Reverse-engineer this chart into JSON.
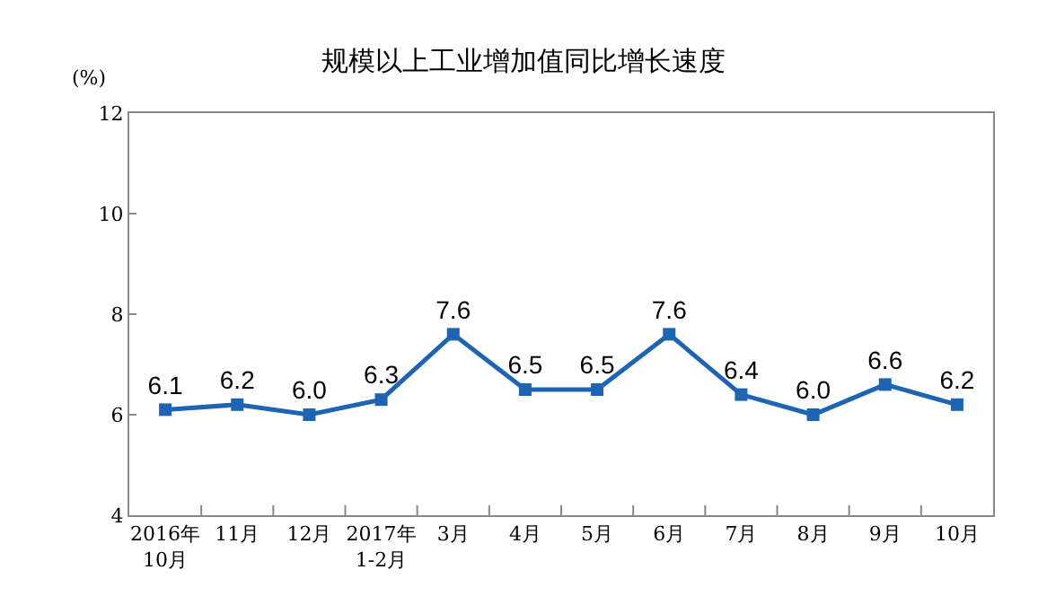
{
  "chart_data": {
    "type": "line",
    "title": "规模以上工业增加值同比增长速度",
    "ylabel": "(%)",
    "categories": [
      "2016年\n10月",
      "11月",
      "12月",
      "2017年\n1-2月",
      "3月",
      "4月",
      "5月",
      "6月",
      "7月",
      "8月",
      "9月",
      "10月"
    ],
    "series": [
      {
        "color": "#1e64b4",
        "values": [
          6.1,
          6.2,
          6.0,
          6.3,
          7.6,
          6.5,
          6.5,
          7.6,
          6.4,
          6.0,
          6.6,
          6.2
        ],
        "value_labels": [
          "6.1",
          "6.2",
          "6.0",
          "6.3",
          "7.6",
          "6.5",
          "6.5",
          "7.6",
          "6.4",
          "6.0",
          "6.6",
          "6.2"
        ]
      }
    ],
    "ylim": [
      4,
      12
    ],
    "yticks": [
      4,
      6,
      8,
      10,
      12
    ],
    "legend": false,
    "marker": "square",
    "line_style": "solid"
  }
}
